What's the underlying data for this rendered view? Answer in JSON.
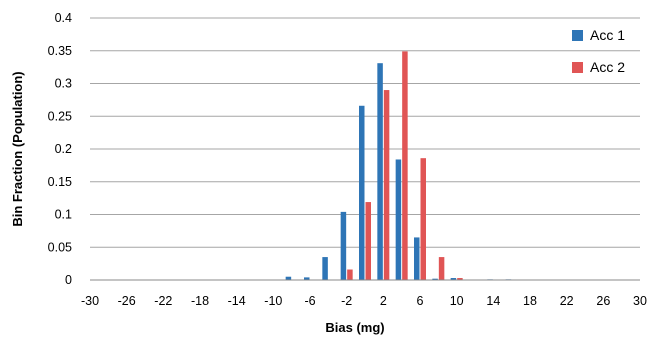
{
  "chart_data": {
    "type": "bar",
    "xlabel": "Bias (mg)",
    "ylabel": "Bin Fraction (Population)",
    "ylim": [
      0,
      0.4
    ],
    "yticks": [
      0,
      0.05,
      0.1,
      0.15,
      0.2,
      0.25,
      0.3,
      0.35,
      0.4
    ],
    "ytick_labels": [
      "0",
      "0.05",
      "0.1",
      "0.15",
      "0.2",
      "0.25",
      "0.3",
      "0.35",
      "0.4"
    ],
    "xtick_labels": [
      "-30",
      "-26",
      "-22",
      "-18",
      "-14",
      "-10",
      "-6",
      "-2",
      "2",
      "6",
      "10",
      "14",
      "18",
      "22",
      "26",
      "30"
    ],
    "categories": [
      -30,
      -28,
      -26,
      -24,
      -22,
      -20,
      -18,
      -16,
      -14,
      -12,
      -10,
      -8,
      -6,
      -4,
      -2,
      0,
      2,
      4,
      6,
      8,
      10,
      12,
      14,
      16,
      18,
      20,
      22,
      24,
      26,
      28,
      30
    ],
    "grid": true,
    "legend": "right",
    "series": [
      {
        "name": "Acc 1",
        "color": "#2e75b6",
        "values": [
          0,
          0,
          0,
          0,
          0,
          0,
          0,
          0,
          0,
          0,
          0,
          0.005,
          0.004,
          0.035,
          0.104,
          0.266,
          0.331,
          0.184,
          0.065,
          0.002,
          0.003,
          0,
          0.001,
          0.001,
          0,
          0,
          0,
          0,
          0,
          0,
          0
        ]
      },
      {
        "name": "Acc 2",
        "color": "#e05555",
        "values": [
          0,
          0,
          0,
          0,
          0,
          0,
          0,
          0,
          0,
          0,
          0,
          0,
          0,
          0,
          0.016,
          0.119,
          0.29,
          0.349,
          0.186,
          0.035,
          0.003,
          0,
          0,
          0,
          0,
          0,
          0,
          0,
          0,
          0,
          0
        ]
      }
    ]
  }
}
